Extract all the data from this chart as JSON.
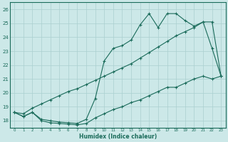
{
  "xlabel": "Humidex (Indice chaleur)",
  "bg_color": "#cce8e8",
  "grid_color": "#aacfcf",
  "line_color": "#1a6b5a",
  "xlim": [
    -0.5,
    23.5
  ],
  "ylim": [
    17.5,
    26.5
  ],
  "yticks": [
    18,
    19,
    20,
    21,
    22,
    23,
    24,
    25,
    26
  ],
  "series1_x": [
    0,
    1,
    2,
    3,
    4,
    5,
    6,
    7,
    8,
    9,
    10,
    11,
    12,
    13,
    14,
    15,
    16,
    17,
    18,
    19,
    20,
    21,
    22,
    23
  ],
  "series1_y": [
    18.6,
    18.3,
    18.6,
    18.1,
    18.0,
    17.9,
    17.85,
    17.8,
    18.1,
    19.6,
    22.3,
    23.2,
    23.4,
    23.8,
    24.9,
    25.7,
    24.7,
    25.7,
    25.7,
    25.2,
    24.8,
    25.1,
    23.2,
    21.2
  ],
  "series2_x": [
    0,
    1,
    2,
    3,
    4,
    5,
    6,
    7,
    8,
    9,
    10,
    11,
    12,
    13,
    14,
    15,
    16,
    17,
    18,
    19,
    20,
    21,
    22,
    23
  ],
  "series2_y": [
    18.6,
    18.5,
    18.9,
    19.2,
    19.5,
    19.8,
    20.1,
    20.3,
    20.6,
    20.9,
    21.2,
    21.5,
    21.8,
    22.1,
    22.5,
    22.9,
    23.3,
    23.7,
    24.1,
    24.4,
    24.7,
    25.1,
    25.1,
    21.2
  ],
  "series3_x": [
    0,
    1,
    2,
    3,
    4,
    5,
    6,
    7,
    8,
    9,
    10,
    11,
    12,
    13,
    14,
    15,
    16,
    17,
    18,
    19,
    20,
    21,
    22,
    23
  ],
  "series3_y": [
    18.6,
    18.3,
    18.6,
    18.0,
    17.85,
    17.8,
    17.75,
    17.7,
    17.8,
    18.2,
    18.5,
    18.8,
    19.0,
    19.3,
    19.5,
    19.8,
    20.1,
    20.4,
    20.4,
    20.7,
    21.0,
    21.2,
    21.0,
    21.2
  ]
}
